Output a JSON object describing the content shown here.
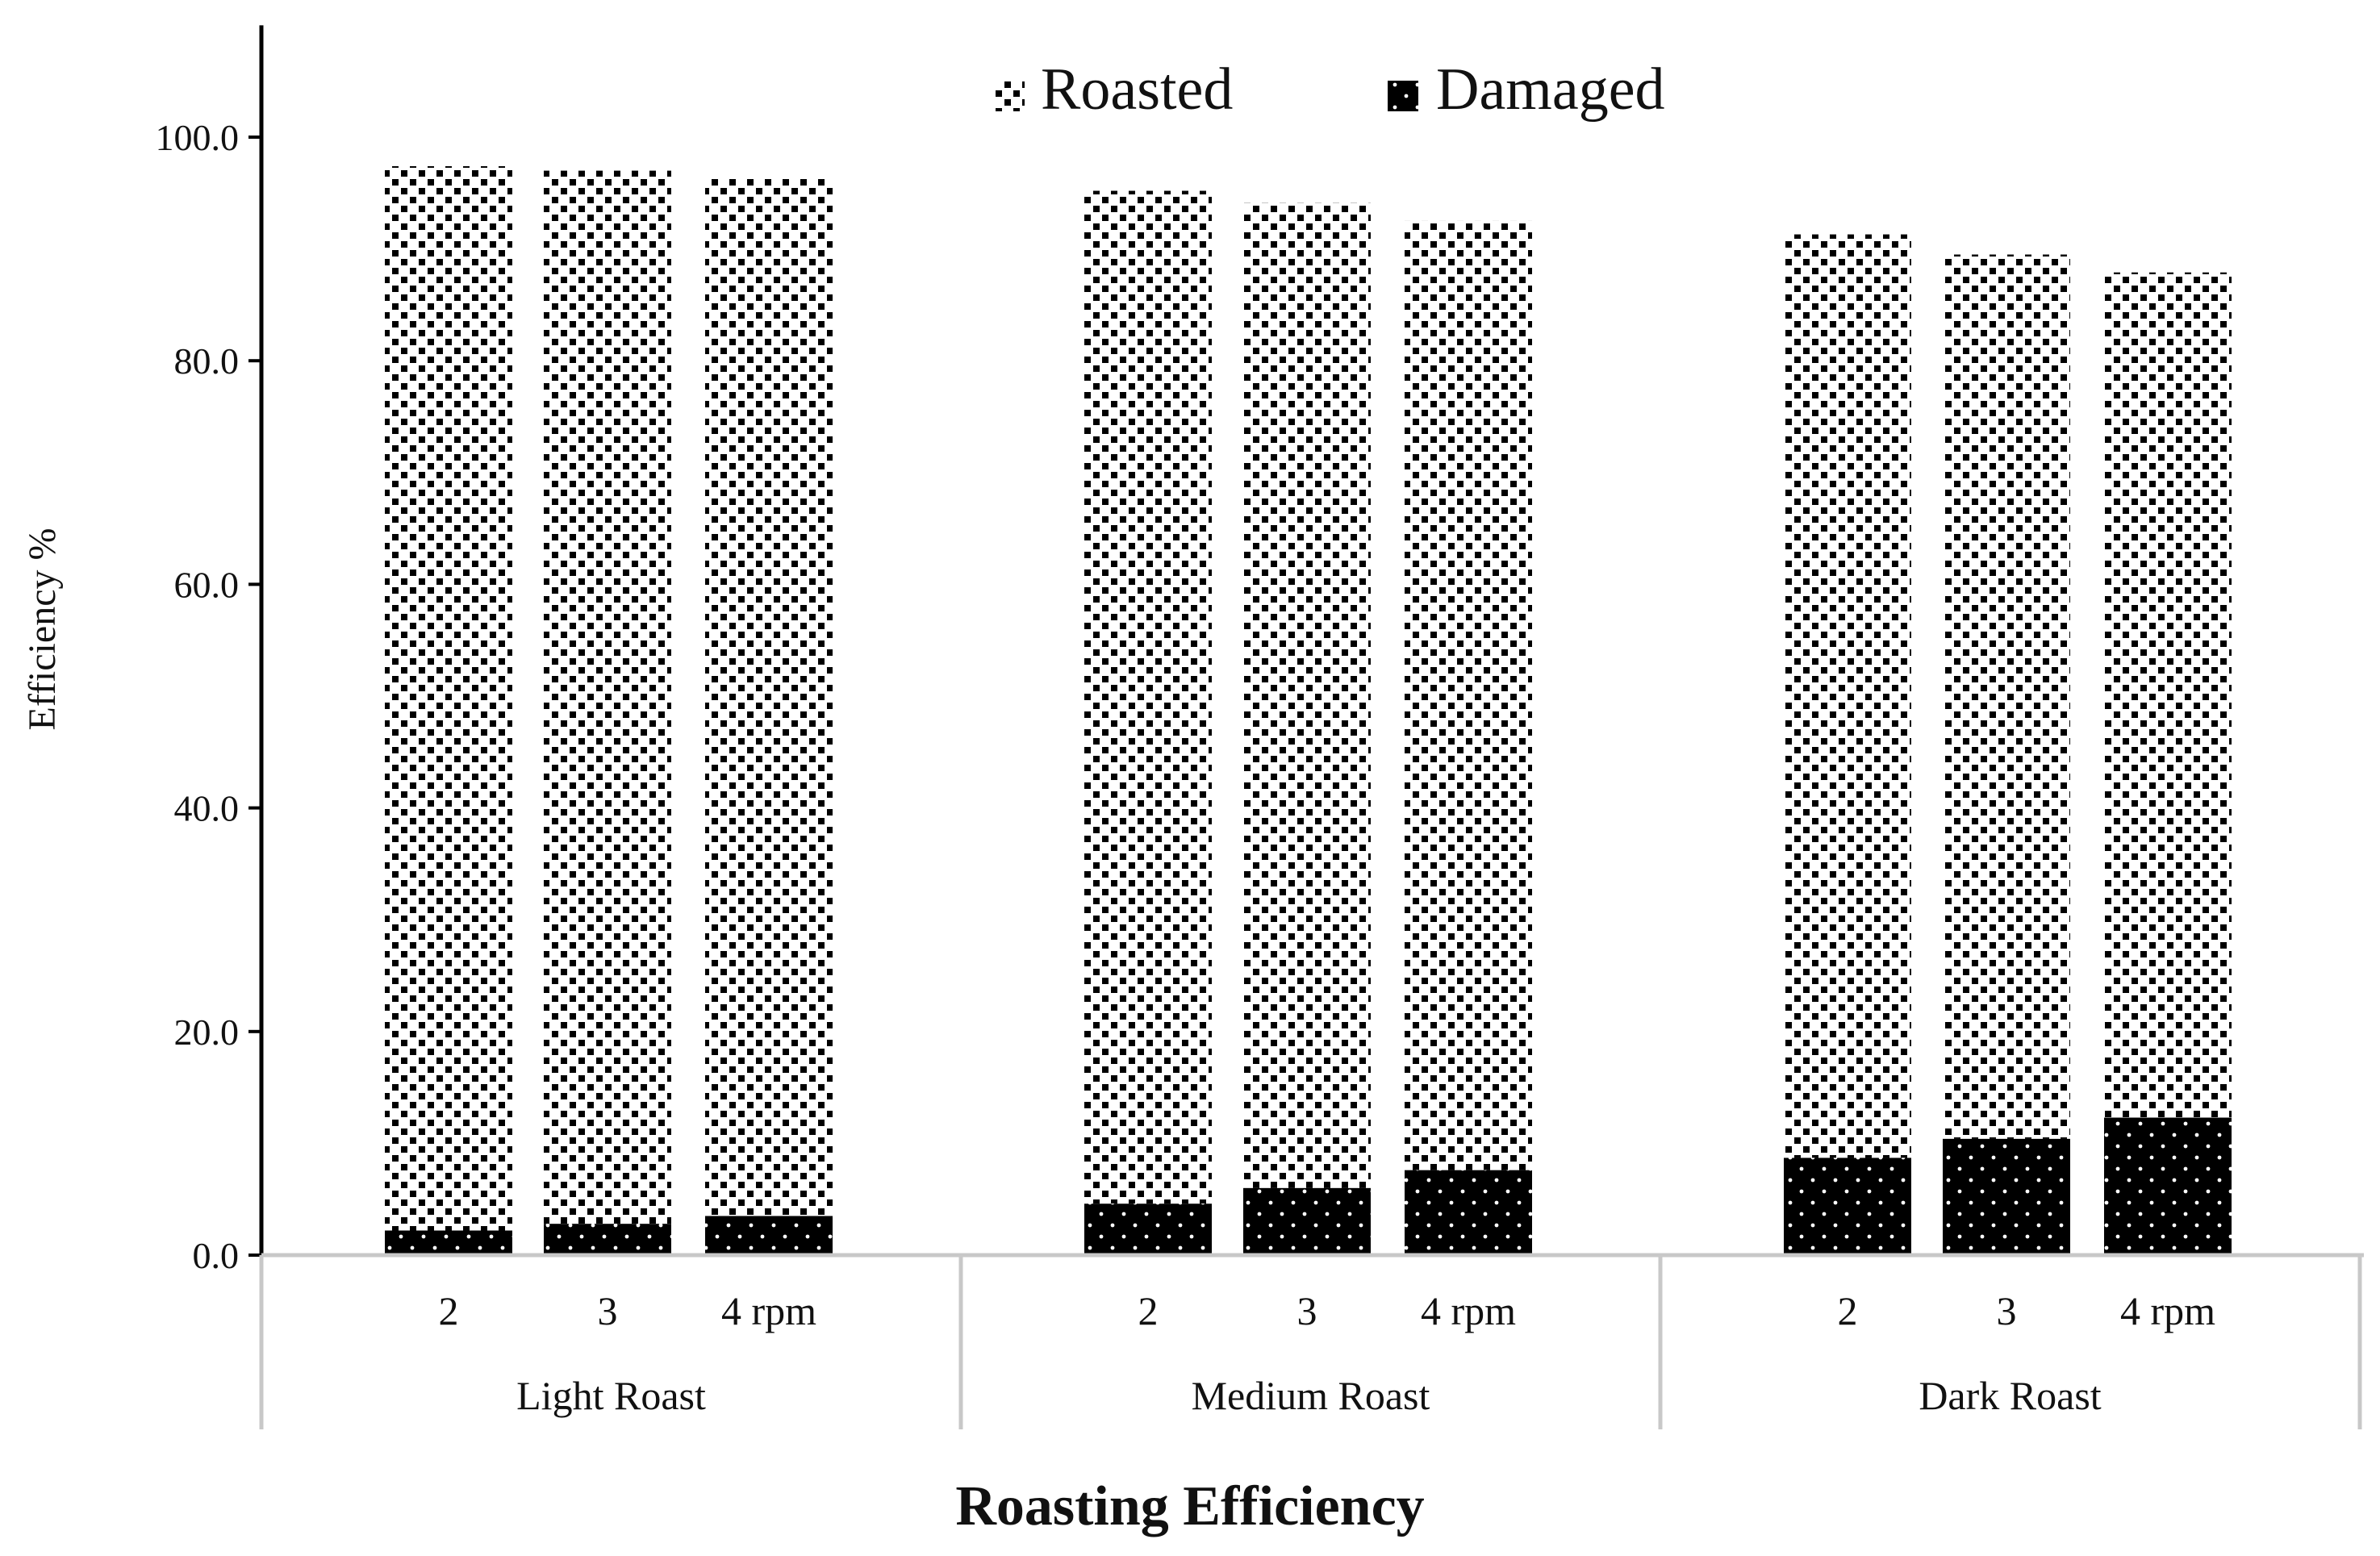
{
  "chart_data": {
    "type": "bar",
    "stacked": true,
    "title": "",
    "xlabel": "Roasting Efficiency",
    "ylabel": "Efficiency %",
    "ylim": [
      0,
      110
    ],
    "yticks": [
      0,
      20,
      40,
      60,
      80,
      100
    ],
    "ytick_labels": [
      "0.0",
      "20.0",
      "40.0",
      "60.0",
      "80.0",
      "100.0"
    ],
    "legend_position": "top-center",
    "groups": [
      {
        "label": "Light Roast",
        "categories": [
          "2",
          "3",
          "4 rpm"
        ]
      },
      {
        "label": "Medium Roast",
        "categories": [
          "2",
          "3",
          "4 rpm"
        ]
      },
      {
        "label": "Dark Roast",
        "categories": [
          "2",
          "3",
          "4 rpm"
        ]
      }
    ],
    "series": [
      {
        "name": "Damaged",
        "pattern": "dots",
        "color": "#000000",
        "values": [
          2.2,
          2.8,
          3.5,
          4.6,
          6.0,
          7.6,
          8.7,
          10.4,
          12.3
        ]
      },
      {
        "name": "Roasted",
        "pattern": "checker",
        "color": "#ffffff",
        "values": [
          95.2,
          94.2,
          92.8,
          90.6,
          88.1,
          84.9,
          82.6,
          79.1,
          75.6
        ]
      }
    ],
    "legend": [
      {
        "name": "Roasted",
        "pattern": "checker"
      },
      {
        "name": "Damaged",
        "pattern": "dots"
      }
    ]
  }
}
